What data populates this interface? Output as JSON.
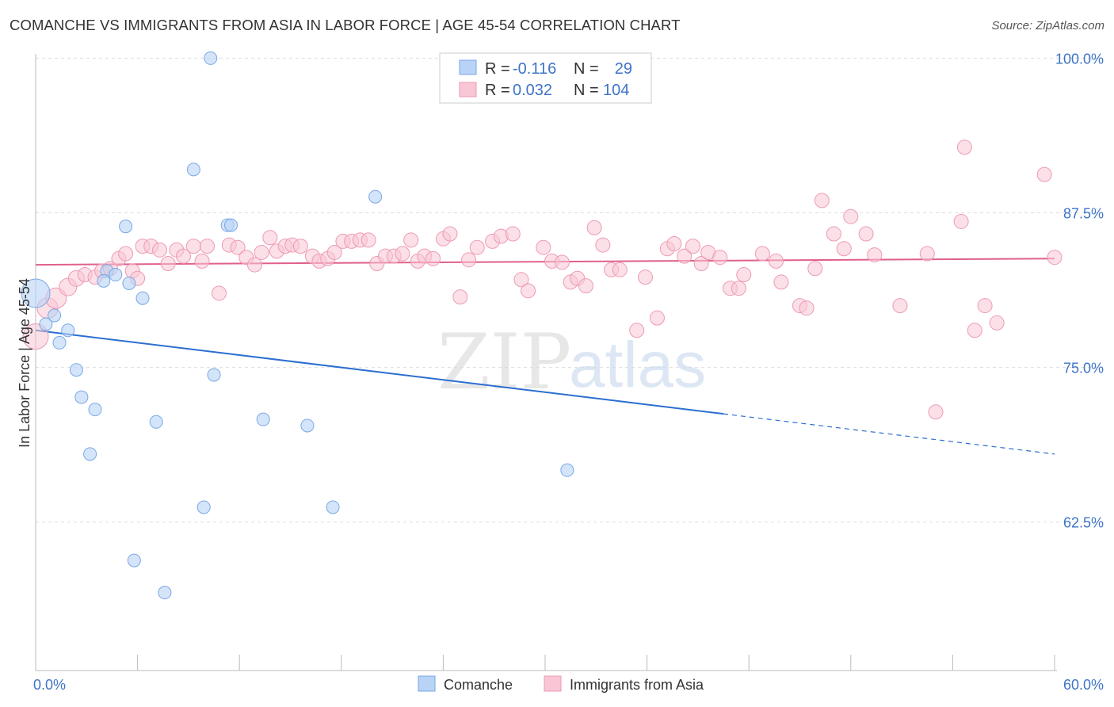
{
  "title": "COMANCHE VS IMMIGRANTS FROM ASIA IN LABOR FORCE | AGE 45-54 CORRELATION CHART",
  "source": "Source: ZipAtlas.com",
  "watermark": {
    "part1": "ZIP",
    "part2": "atlas"
  },
  "legend_box": {
    "rows": [
      {
        "r_label": "R =",
        "r_value": "-0.116",
        "n_label": "N =",
        "n_value": "29"
      },
      {
        "r_label": "R =",
        "r_value": "0.032",
        "n_label": "N =",
        "n_value": "104"
      }
    ]
  },
  "bottom_legend": [
    "Comanche",
    "Immigrants from Asia"
  ],
  "colors": {
    "comanche_fill": "#b8d3f5",
    "comanche_stroke": "#7aa7e6",
    "comanche_line": "#2b6fd0",
    "asia_fill": "#f8c6d4",
    "asia_stroke": "#ee9ab4",
    "asia_line": "#e0608c",
    "grid": "#dddddd",
    "axis_text": "#3d74c7"
  },
  "chart_data": {
    "type": "scatter",
    "title": "COMANCHE VS IMMIGRANTS FROM ASIA IN LABOR FORCE | AGE 45-54 CORRELATION CHART",
    "xlabel": "",
    "ylabel": "In Labor Force | Age 45-54",
    "xlim": [
      0,
      60
    ],
    "ylim": [
      50.5,
      101.5
    ],
    "x_tick_labels": [
      {
        "value": 0,
        "label": "0.0%"
      },
      {
        "value": 60,
        "label": "60.0%"
      }
    ],
    "y_ticks": [
      {
        "value": 100,
        "label": "100.0%"
      },
      {
        "value": 87.5,
        "label": "87.5%"
      },
      {
        "value": 75,
        "label": "75.0%"
      },
      {
        "value": 62.5,
        "label": "62.5%"
      }
    ],
    "series": [
      {
        "name": "Comanche",
        "r": -0.116,
        "n": 29,
        "trend": {
          "x0": 0,
          "y0": 78.0,
          "x1": 60,
          "y1": 68.0,
          "solid_until_x": 40.5
        },
        "points": [
          [
            0.0,
            81.0,
            18
          ],
          [
            0.6,
            78.5,
            8
          ],
          [
            1.1,
            79.2,
            8
          ],
          [
            1.4,
            77.0,
            8
          ],
          [
            1.9,
            78.0,
            8
          ],
          [
            2.4,
            74.8,
            8
          ],
          [
            2.7,
            72.6,
            8
          ],
          [
            3.2,
            68.0,
            8
          ],
          [
            3.5,
            71.6,
            8
          ],
          [
            4.2,
            82.8,
            8
          ],
          [
            4.0,
            82.0,
            8
          ],
          [
            4.7,
            82.5,
            8
          ],
          [
            5.3,
            86.4,
            8
          ],
          [
            5.5,
            81.8,
            8
          ],
          [
            5.8,
            59.4,
            8
          ],
          [
            6.3,
            80.6,
            8
          ],
          [
            7.1,
            70.6,
            8
          ],
          [
            7.6,
            56.8,
            8
          ],
          [
            9.3,
            91.0,
            8
          ],
          [
            9.9,
            63.7,
            8
          ],
          [
            10.3,
            100.0,
            8
          ],
          [
            10.5,
            74.4,
            8
          ],
          [
            11.3,
            86.5,
            8
          ],
          [
            11.5,
            86.5,
            8
          ],
          [
            13.4,
            70.8,
            8
          ],
          [
            16.0,
            70.3,
            8
          ],
          [
            17.5,
            63.7,
            8
          ],
          [
            20.0,
            88.8,
            8
          ],
          [
            31.3,
            66.7,
            8
          ]
        ]
      },
      {
        "name": "Immigrants from Asia",
        "r": 0.032,
        "n": 104,
        "trend": {
          "x0": 0,
          "y0": 83.3,
          "x1": 60,
          "y1": 83.8
        },
        "points": [
          [
            0.0,
            77.5,
            16
          ],
          [
            0.7,
            79.8,
            13
          ],
          [
            1.2,
            80.6,
            13
          ],
          [
            1.9,
            81.5,
            11
          ],
          [
            2.4,
            82.2,
            10
          ],
          [
            2.9,
            82.5,
            9
          ],
          [
            3.5,
            82.3,
            9
          ],
          [
            3.9,
            82.8,
            9
          ],
          [
            4.4,
            83.0,
            9
          ],
          [
            4.9,
            83.8,
            9
          ],
          [
            5.3,
            84.2,
            9
          ],
          [
            5.7,
            82.8,
            9
          ],
          [
            6.0,
            82.2,
            9
          ],
          [
            6.3,
            84.8,
            9
          ],
          [
            6.8,
            84.8,
            9
          ],
          [
            7.3,
            84.5,
            9
          ],
          [
            7.8,
            83.4,
            9
          ],
          [
            8.3,
            84.5,
            9
          ],
          [
            8.7,
            84.0,
            9
          ],
          [
            9.3,
            84.8,
            9
          ],
          [
            9.8,
            83.6,
            9
          ],
          [
            10.1,
            84.8,
            9
          ],
          [
            10.8,
            81.0,
            9
          ],
          [
            11.4,
            84.9,
            9
          ],
          [
            11.9,
            84.7,
            9
          ],
          [
            12.4,
            83.9,
            9
          ],
          [
            12.9,
            83.3,
            9
          ],
          [
            13.3,
            84.3,
            9
          ],
          [
            13.8,
            85.5,
            9
          ],
          [
            14.2,
            84.4,
            9
          ],
          [
            14.7,
            84.8,
            9
          ],
          [
            15.1,
            84.9,
            9
          ],
          [
            15.6,
            84.8,
            9
          ],
          [
            16.3,
            84.0,
            9
          ],
          [
            16.7,
            83.6,
            9
          ],
          [
            17.2,
            83.8,
            9
          ],
          [
            17.6,
            84.3,
            9
          ],
          [
            18.1,
            85.2,
            9
          ],
          [
            18.6,
            85.2,
            9
          ],
          [
            19.1,
            85.3,
            9
          ],
          [
            19.6,
            85.3,
            9
          ],
          [
            20.1,
            83.4,
            9
          ],
          [
            20.6,
            84.0,
            9
          ],
          [
            21.1,
            84.0,
            9
          ],
          [
            21.6,
            84.2,
            9
          ],
          [
            22.1,
            85.3,
            9
          ],
          [
            22.5,
            83.6,
            9
          ],
          [
            22.9,
            84.0,
            9
          ],
          [
            23.4,
            83.8,
            9
          ],
          [
            24.0,
            85.4,
            9
          ],
          [
            24.4,
            85.8,
            9
          ],
          [
            25.0,
            80.7,
            9
          ],
          [
            25.5,
            83.7,
            9
          ],
          [
            26.0,
            84.7,
            9
          ],
          [
            26.9,
            85.2,
            9
          ],
          [
            27.4,
            85.6,
            9
          ],
          [
            28.1,
            85.8,
            9
          ],
          [
            28.6,
            82.1,
            9
          ],
          [
            29.0,
            81.2,
            9
          ],
          [
            29.9,
            84.7,
            9
          ],
          [
            30.4,
            83.6,
            9
          ],
          [
            31.0,
            83.5,
            9
          ],
          [
            31.5,
            81.9,
            9
          ],
          [
            31.9,
            82.2,
            9
          ],
          [
            32.4,
            81.6,
            9
          ],
          [
            32.9,
            86.3,
            9
          ],
          [
            33.4,
            84.9,
            9
          ],
          [
            33.9,
            82.9,
            9
          ],
          [
            34.4,
            82.9,
            9
          ],
          [
            35.4,
            78.0,
            9
          ],
          [
            35.9,
            82.3,
            9
          ],
          [
            36.6,
            79.0,
            9
          ],
          [
            37.2,
            84.6,
            9
          ],
          [
            37.6,
            85.0,
            9
          ],
          [
            38.2,
            84.0,
            9
          ],
          [
            38.7,
            84.8,
            9
          ],
          [
            39.2,
            83.4,
            9
          ],
          [
            39.6,
            84.3,
            9
          ],
          [
            40.3,
            83.9,
            9
          ],
          [
            40.9,
            81.4,
            9
          ],
          [
            41.4,
            81.4,
            9
          ],
          [
            41.7,
            82.5,
            9
          ],
          [
            42.8,
            84.2,
            9
          ],
          [
            43.6,
            83.6,
            9
          ],
          [
            43.9,
            81.9,
            9
          ],
          [
            45.0,
            80.0,
            9
          ],
          [
            45.4,
            79.8,
            9
          ],
          [
            45.9,
            83.0,
            9
          ],
          [
            46.3,
            88.5,
            9
          ],
          [
            47.0,
            85.8,
            9
          ],
          [
            47.6,
            84.6,
            9
          ],
          [
            48.0,
            87.2,
            9
          ],
          [
            48.9,
            85.8,
            9
          ],
          [
            49.4,
            84.1,
            9
          ],
          [
            50.9,
            80.0,
            9
          ],
          [
            52.5,
            84.2,
            9
          ],
          [
            53.0,
            71.4,
            9
          ],
          [
            54.5,
            86.8,
            9
          ],
          [
            54.7,
            92.8,
            9
          ],
          [
            55.3,
            78.0,
            9
          ],
          [
            55.9,
            80.0,
            9
          ],
          [
            56.6,
            78.6,
            9
          ],
          [
            59.4,
            90.6,
            9
          ],
          [
            60.0,
            83.9,
            9
          ]
        ]
      }
    ],
    "legend_position": "top-center",
    "grid": true
  }
}
